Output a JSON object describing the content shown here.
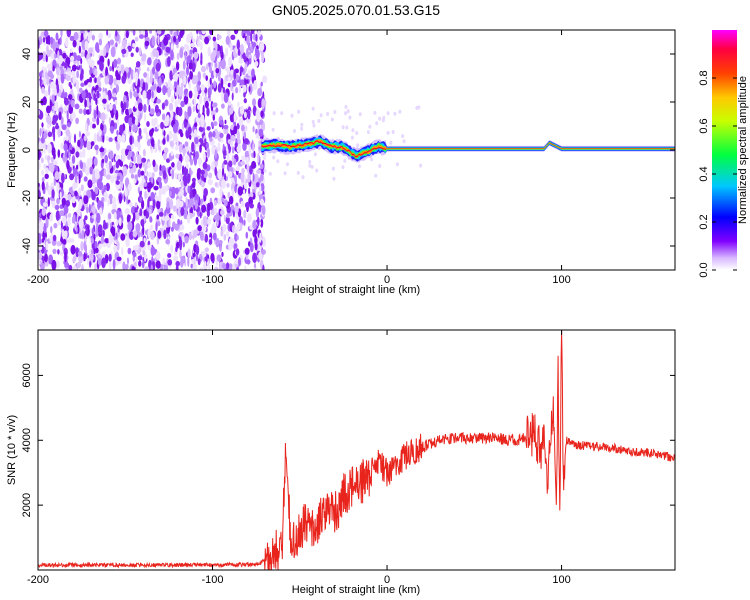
{
  "title": "GN05.2025.070.01.53.G15",
  "chart_data": [
    {
      "type": "heatmap",
      "xlabel": "Height of straight line (km)",
      "ylabel": "Frequency (Hz)",
      "xlim": [
        -200,
        165
      ],
      "ylim": [
        -50,
        50
      ],
      "x_ticks": [
        -200,
        -100,
        0,
        100
      ],
      "y_ticks": [
        -40,
        -20,
        0,
        20,
        40
      ],
      "noise_region_x": [
        -200,
        -70
      ],
      "signal_region_x": [
        -72,
        165
      ],
      "signal_center_frequency": 0,
      "signal_trace": [
        {
          "x": -72,
          "y": 1.5
        },
        {
          "x": -65,
          "y": 2.0
        },
        {
          "x": -55,
          "y": 1.5
        },
        {
          "x": -45,
          "y": 2.5
        },
        {
          "x": -38,
          "y": 3.5
        },
        {
          "x": -32,
          "y": 1.5
        },
        {
          "x": -25,
          "y": 1.0
        },
        {
          "x": -18,
          "y": -2.5
        },
        {
          "x": -12,
          "y": -1.0
        },
        {
          "x": -5,
          "y": 1.5
        },
        {
          "x": 0,
          "y": 0.5
        },
        {
          "x": 10,
          "y": 0.5
        },
        {
          "x": 50,
          "y": 0.5
        },
        {
          "x": 90,
          "y": 0.5
        },
        {
          "x": 93,
          "y": 3.0
        },
        {
          "x": 100,
          "y": 0.5
        },
        {
          "x": 165,
          "y": 0.5
        }
      ],
      "colorbar": {
        "label": "Normalized spectral amplitude",
        "range": [
          0.0,
          1.0
        ],
        "ticks": [
          0.0,
          0.2,
          0.4,
          0.6,
          0.8
        ],
        "tick_labels": [
          "0.0",
          "0.2",
          "0.4",
          "0.6",
          "0.8"
        ],
        "colormap": [
          "#ffffff",
          "#8000ff",
          "#0000ff",
          "#00ffff",
          "#00ff00",
          "#ffff00",
          "#ff8000",
          "#ff0000",
          "#ff00ff"
        ]
      }
    },
    {
      "type": "line",
      "xlabel": "Height of straight line (km)",
      "ylabel": "SNR (10 * v/v)",
      "xlim": [
        -200,
        165
      ],
      "ylim": [
        0,
        7400
      ],
      "x_ticks": [
        -200,
        -100,
        0,
        100
      ],
      "y_ticks": [
        2000,
        4000,
        6000
      ],
      "series": [
        {
          "color": "#e8241c",
          "x": [
            -200,
            -150,
            -100,
            -75,
            -65,
            -60,
            -58,
            -55,
            -50,
            -45,
            -40,
            -35,
            -30,
            -25,
            -20,
            -15,
            -10,
            -5,
            0,
            10,
            20,
            30,
            40,
            50,
            60,
            70,
            80,
            85,
            88,
            90,
            92,
            95,
            97,
            98,
            99,
            100,
            101,
            103,
            105,
            110,
            120,
            130,
            140,
            150,
            160,
            165
          ],
          "y": [
            150,
            150,
            160,
            170,
            400,
            900,
            4100,
            700,
            1200,
            1500,
            1300,
            1900,
            1700,
            2300,
            2500,
            2700,
            2900,
            3300,
            3000,
            3500,
            3800,
            4000,
            4100,
            4050,
            4100,
            4000,
            4050,
            4200,
            3600,
            4500,
            2700,
            5100,
            2200,
            6100,
            1300,
            7400,
            2900,
            4000,
            3900,
            3850,
            3800,
            3750,
            3650,
            3600,
            3500,
            3450
          ]
        }
      ]
    }
  ]
}
